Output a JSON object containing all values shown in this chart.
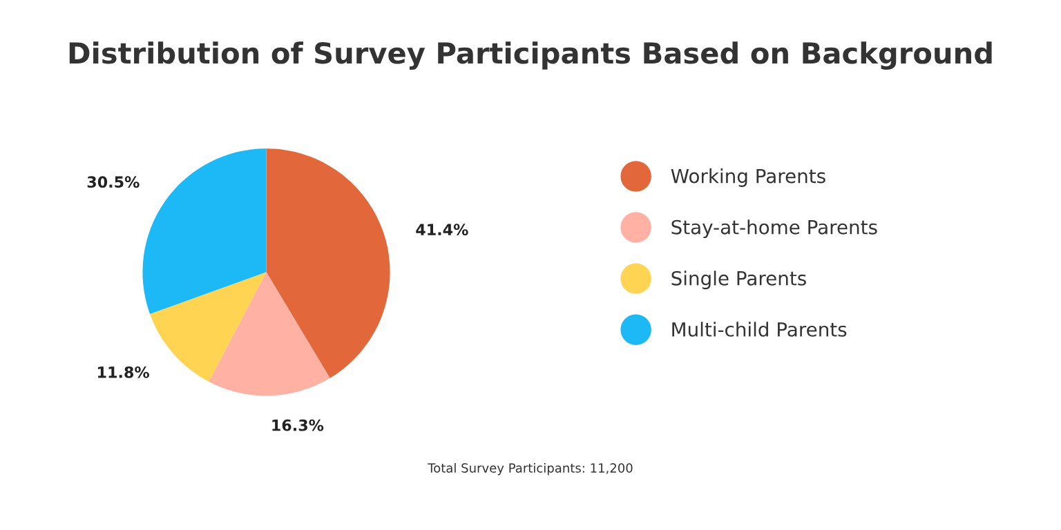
{
  "chart_data": {
    "type": "pie",
    "title": "Distribution of Survey Participants Based on Background",
    "categories": [
      "Working Parents",
      "Stay-at-home Parents",
      "Single Parents",
      "Multi-child Parents"
    ],
    "values": [
      41.4,
      16.3,
      11.8,
      30.5
    ],
    "value_labels": [
      "41.4%",
      "16.3%",
      "11.8%",
      "30.5%"
    ],
    "colors": [
      "#e2673a",
      "#ffb1a3",
      "#ffd453",
      "#1db8f6"
    ],
    "legend": "right",
    "annotations": [
      "Total Survey Participants: 11,200"
    ]
  }
}
